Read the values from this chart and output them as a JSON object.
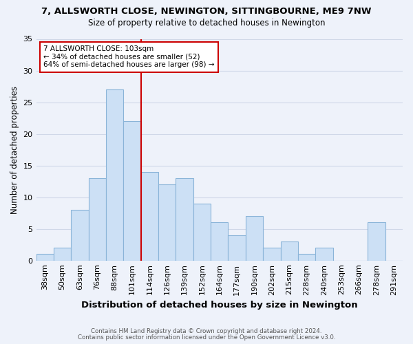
{
  "title1": "7, ALLSWORTH CLOSE, NEWINGTON, SITTINGBOURNE, ME9 7NW",
  "title2": "Size of property relative to detached houses in Newington",
  "xlabel": "Distribution of detached houses by size in Newington",
  "ylabel": "Number of detached properties",
  "bar_labels": [
    "38sqm",
    "50sqm",
    "63sqm",
    "76sqm",
    "88sqm",
    "101sqm",
    "114sqm",
    "126sqm",
    "139sqm",
    "152sqm",
    "164sqm",
    "177sqm",
    "190sqm",
    "202sqm",
    "215sqm",
    "228sqm",
    "240sqm",
    "253sqm",
    "266sqm",
    "278sqm",
    "291sqm"
  ],
  "bar_values": [
    1,
    2,
    8,
    13,
    27,
    22,
    14,
    12,
    13,
    9,
    6,
    4,
    7,
    2,
    3,
    1,
    2,
    0,
    0,
    6,
    0
  ],
  "bar_color": "#cce0f5",
  "bar_edge_color": "#8ab4d8",
  "vline_color": "#cc0000",
  "annotation_text": "7 ALLSWORTH CLOSE: 103sqm\n← 34% of detached houses are smaller (52)\n64% of semi-detached houses are larger (98) →",
  "annotation_box_color": "white",
  "annotation_box_edge": "#cc0000",
  "ylim": [
    0,
    35
  ],
  "yticks": [
    0,
    5,
    10,
    15,
    20,
    25,
    30,
    35
  ],
  "footer1": "Contains HM Land Registry data © Crown copyright and database right 2024.",
  "footer2": "Contains public sector information licensed under the Open Government Licence v3.0.",
  "bg_color": "#eef2fa",
  "grid_color": "#d0d8e8"
}
